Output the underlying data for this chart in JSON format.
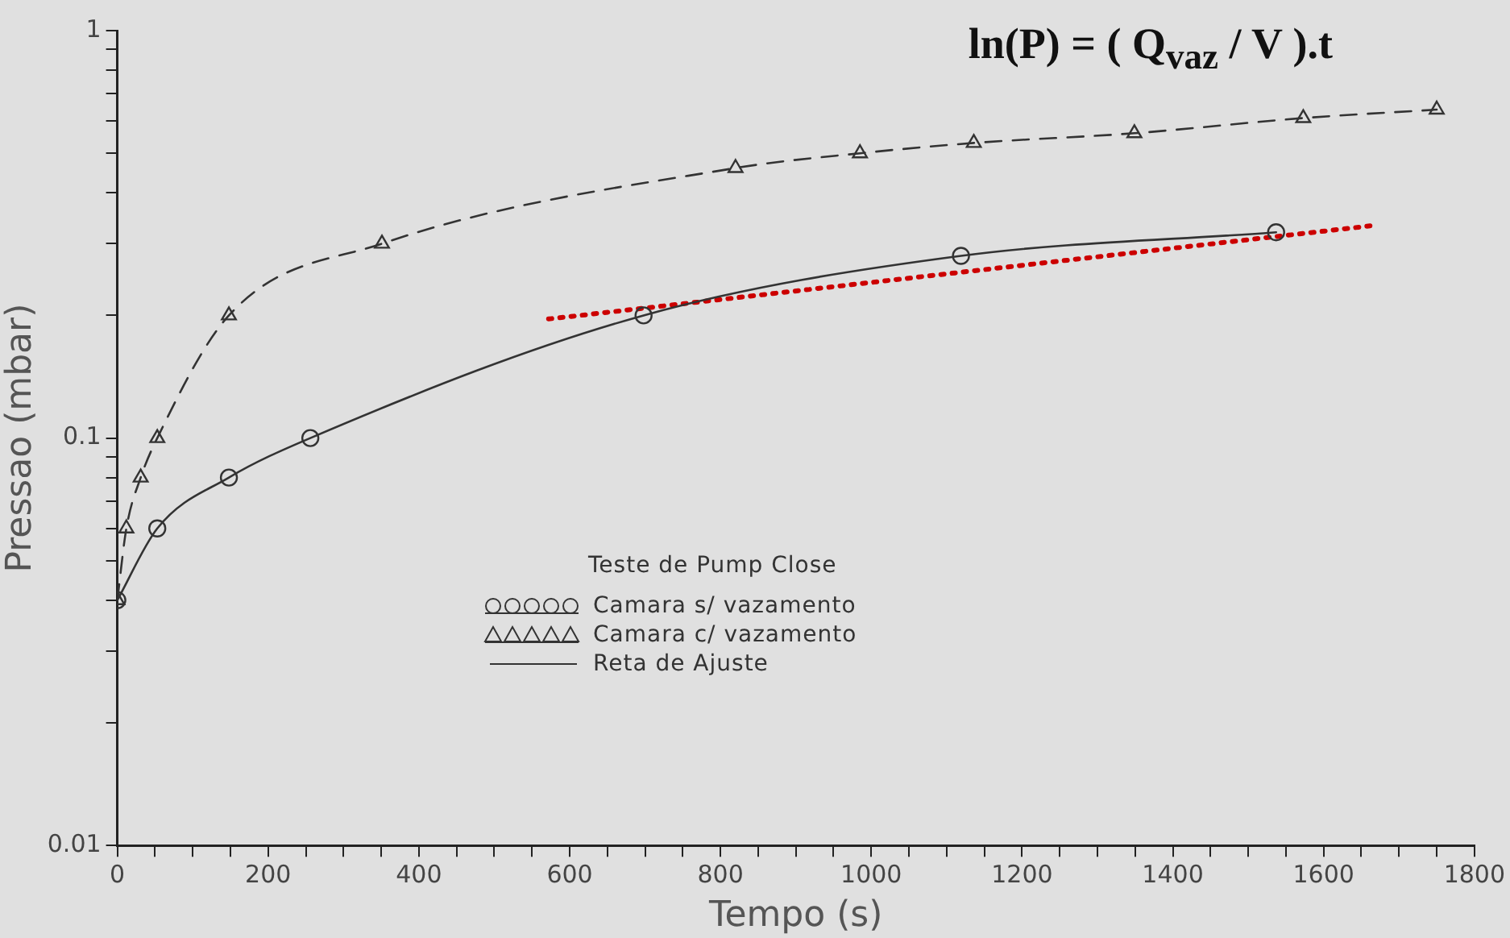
{
  "chart_data": {
    "type": "line",
    "xlabel": "Tempo (s)",
    "ylabel": "Pressao (mbar)",
    "legend_title": "Teste de Pump Close",
    "legend": "center",
    "log": "y",
    "grid": false,
    "annotations": [
      "ln(P) = ( Q$_{vaz}$ / V ).t"
    ],
    "xlim": [
      0,
      1800
    ],
    "ylim": [
      0.01,
      1
    ],
    "xticks": [
      0,
      {
        "value": 50,
        "label": null
      },
      {
        "value": 100,
        "label": null
      },
      {
        "value": 150,
        "label": null
      },
      200,
      {
        "value": 250,
        "label": null
      },
      {
        "value": 300,
        "label": null
      },
      {
        "value": 350,
        "label": null
      },
      400,
      {
        "value": 450,
        "label": null
      },
      {
        "value": 500,
        "label": null
      },
      {
        "value": 550,
        "label": null
      },
      600,
      {
        "value": 650,
        "label": null
      },
      {
        "value": 700,
        "label": null
      },
      {
        "value": 750,
        "label": null
      },
      800,
      {
        "value": 850,
        "label": null
      },
      {
        "value": 900,
        "label": null
      },
      {
        "value": 950,
        "label": null
      },
      1000,
      {
        "value": 1050,
        "label": null
      },
      {
        "value": 1100,
        "label": null
      },
      {
        "value": 1150,
        "label": null
      },
      1200,
      {
        "value": 1250,
        "label": null
      },
      {
        "value": 1300,
        "label": null
      },
      {
        "value": 1350,
        "label": null
      },
      1400,
      {
        "value": 1450,
        "label": null
      },
      {
        "value": 1500,
        "label": null
      },
      {
        "value": 1550,
        "label": null
      },
      1600,
      {
        "value": 1650,
        "label": null
      },
      {
        "value": 1700,
        "label": null
      },
      {
        "value": 1750,
        "label": null
      },
      1800
    ],
    "yticks": [
      0.01,
      {
        "value": 0.02,
        "label": null
      },
      {
        "value": 0.03,
        "label": null
      },
      {
        "value": 0.04,
        "label": null
      },
      {
        "value": 0.05,
        "label": null
      },
      {
        "value": 0.06,
        "label": null
      },
      {
        "value": 0.07,
        "label": null
      },
      {
        "value": 0.08,
        "label": null
      },
      {
        "value": 0.09,
        "label": null
      },
      0.1,
      {
        "value": 0.2,
        "label": null
      },
      {
        "value": 0.3,
        "label": null
      },
      {
        "value": 0.4,
        "label": null
      },
      {
        "value": 0.5,
        "label": null
      },
      {
        "value": 0.6,
        "label": null
      },
      {
        "value": 0.7,
        "label": null
      },
      {
        "value": 0.8,
        "label": null
      },
      {
        "value": 0.9,
        "label": null
      },
      1
    ],
    "series": [
      {
        "type": "scatter",
        "name": "Camara s/ vazamento",
        "color": "#333333",
        "marker": "circle",
        "x": [
          0,
          53,
          148,
          256,
          698,
          1119,
          1537
        ],
        "values": [
          0.04,
          0.06,
          0.08,
          0.1,
          0.2,
          0.28,
          0.32
        ]
      },
      {
        "type": "scatter",
        "name": "Camara c/ vazamento",
        "color": "#333333",
        "marker": "triangle",
        "x": [
          0,
          12,
          31,
          53,
          148,
          351,
          820,
          985,
          1136,
          1349,
          1573,
          1750
        ],
        "values": [
          0.04,
          0.06,
          0.08,
          0.1,
          0.2,
          0.3,
          0.46,
          0.5,
          0.53,
          0.56,
          0.61,
          0.64
        ]
      },
      {
        "type": "line",
        "name": "Reta de Ajuste",
        "color": "#333333",
        "line_style": "solid",
        "x": [
          0,
          53,
          148,
          256,
          698,
          1119,
          1537
        ],
        "values": [
          0.04,
          0.06,
          0.08,
          0.1,
          0.2,
          0.28,
          0.32
        ]
      },
      {
        "type": "line",
        "color": "#333333",
        "line_style": "dashed",
        "x": [
          0,
          12,
          31,
          53,
          148,
          351,
          820,
          985,
          1136,
          1349,
          1573,
          1750
        ],
        "values": [
          0.04,
          0.06,
          0.08,
          0.1,
          0.2,
          0.3,
          0.46,
          0.5,
          0.53,
          0.56,
          0.61,
          0.64
        ]
      },
      {
        "type": "line",
        "color": "#cc0000",
        "line_style": "dotted",
        "x": [
          572,
          1670
        ],
        "values": [
          0.196,
          0.333
        ]
      }
    ]
  }
}
